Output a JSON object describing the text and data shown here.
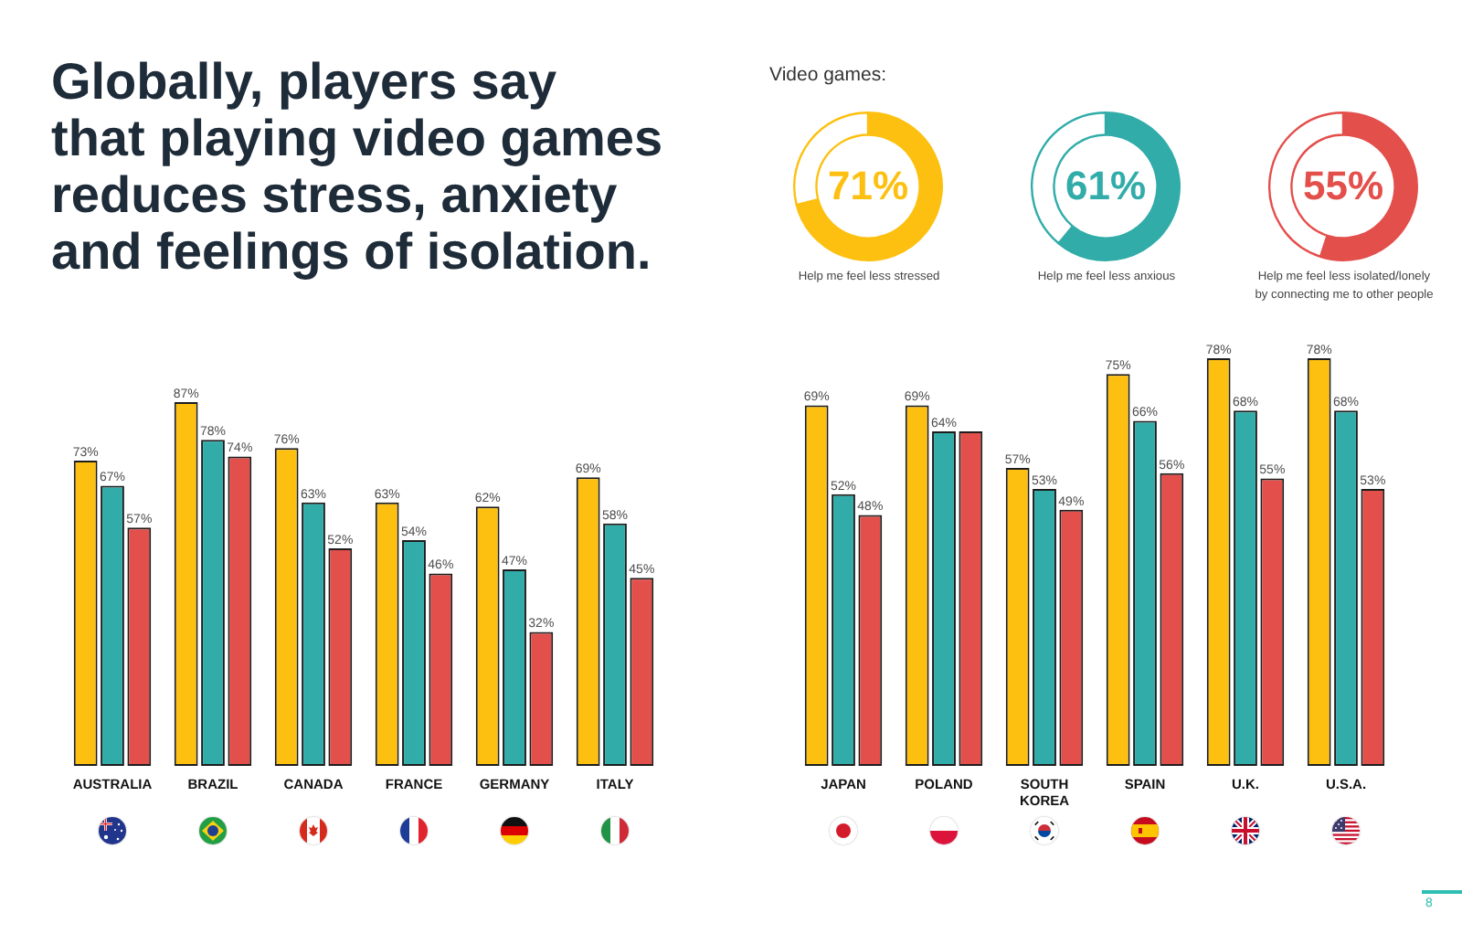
{
  "chart_data": [
    {
      "type": "other",
      "title": "Globally, players say that playing video games reduces stress, anxiety and feelings of isolation.",
      "annotations": [
        "8"
      ]
    },
    {
      "type": "donut",
      "title": "Video games:",
      "categories": [
        "Help me feel less stressed",
        null
      ],
      "values": [
        71,
        29
      ],
      "colors": [
        "#fdc010",
        "#ffffff"
      ],
      "value_labels": [
        "71%",
        null
      ]
    },
    {
      "type": "donut",
      "categories": [
        "Help me feel less anxious",
        null
      ],
      "values": [
        61,
        39
      ],
      "colors": [
        "#31aca9",
        "#ffffff"
      ],
      "value_labels": [
        "61%",
        null
      ]
    },
    {
      "type": "donut",
      "categories": [
        "Help me feel less isolated/lonely by connecting me to other people",
        null
      ],
      "values": [
        55,
        45
      ],
      "colors": [
        "#e34f4b",
        "#ffffff"
      ],
      "value_labels": [
        "55%",
        null
      ]
    },
    {
      "type": "bar",
      "categories": [
        "AUSTRALIA",
        "BRAZIL",
        "CANADA",
        "FRANCE",
        "GERMANY",
        "ITALY"
      ],
      "series": [
        {
          "color": "#fdc010",
          "values": [
            73,
            87,
            76,
            63,
            62,
            69
          ],
          "value_labels": [
            "73%",
            "87%",
            "76%",
            "63%",
            "62%",
            "69%"
          ]
        },
        {
          "color": "#31aca9",
          "values": [
            67,
            78,
            63,
            54,
            47,
            58
          ],
          "value_labels": [
            "67%",
            "78%",
            "63%",
            "54%",
            "47%",
            "58%"
          ]
        },
        {
          "color": "#e34f4b",
          "values": [
            57,
            74,
            52,
            46,
            32,
            45
          ],
          "value_labels": [
            "57%",
            "74%",
            "52%",
            "46%",
            "32%",
            "45%"
          ]
        }
      ],
      "tick_labels": "x"
    },
    {
      "type": "bar",
      "categories": [
        "JAPAN",
        "POLAND",
        "SOUTH KOREA",
        "SPAIN",
        "U.K.",
        "U.S.A."
      ],
      "series": [
        {
          "color": "#fdc010",
          "values": [
            69,
            69,
            57,
            75,
            78,
            78
          ],
          "value_labels": [
            "69%",
            "69%",
            "57%",
            "75%",
            "78%",
            "78%"
          ]
        },
        {
          "color": "#31aca9",
          "values": [
            52,
            64,
            53,
            66,
            68,
            68
          ],
          "value_labels": [
            "52%",
            "64%",
            "53%",
            "66%",
            "68%",
            "68%"
          ]
        },
        {
          "color": "#e34f4b",
          "values": [
            48,
            64,
            49,
            56,
            55,
            53
          ],
          "value_labels": [
            "48%",
            null,
            "49%",
            "56%",
            "55%",
            "53%"
          ]
        }
      ],
      "tick_labels": "x"
    }
  ]
}
